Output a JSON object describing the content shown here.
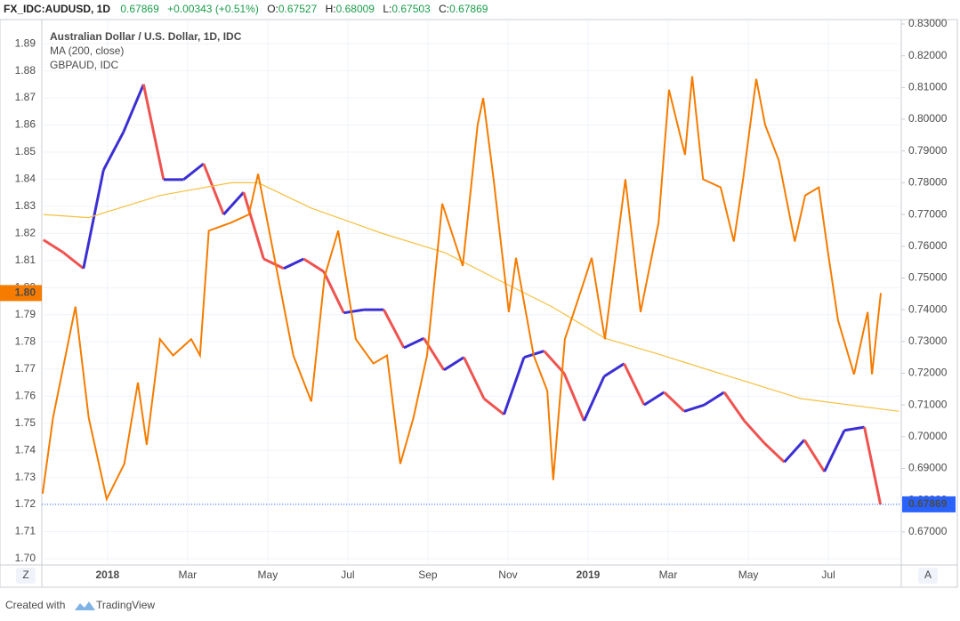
{
  "header": {
    "symbol": "FX_IDC:AUDUSD, 1D",
    "last": "0.67869",
    "change": "+0.00343 (+0.51%)",
    "o_label": "O:",
    "o": "0.67527",
    "h_label": "H:",
    "h": "0.68009",
    "l_label": "L:",
    "l": "0.67503",
    "c_label": "C:",
    "c": "0.67869"
  },
  "footer": {
    "created": "Created with",
    "brand": "TradingView",
    "left_button": "Z",
    "right_button": "A"
  },
  "chart_data": {
    "type": "line",
    "legend": [
      "Australian Dollar / U.S. Dollar, 1D, IDC",
      "MA (200, close)",
      "GBPAUD, IDC"
    ],
    "xlim": [
      -1.64,
      19.82
    ],
    "xticks": [
      {
        "value": 0,
        "label": "2018"
      },
      {
        "value": 2,
        "label": "Mar"
      },
      {
        "value": 4,
        "label": "May"
      },
      {
        "value": 6,
        "label": "Jul"
      },
      {
        "value": 8,
        "label": "Sep"
      },
      {
        "value": 10,
        "label": "Nov"
      },
      {
        "value": 12,
        "label": "2019"
      },
      {
        "value": 14,
        "label": "Mar"
      },
      {
        "value": 16,
        "label": "May"
      },
      {
        "value": 18,
        "label": "Jul"
      }
    ],
    "ylim": [
      1.6977,
      1.8989
    ],
    "yticks": [
      {
        "value": 1.7,
        "label": "1.70"
      },
      1.71,
      1.72,
      1.73,
      1.74,
      1.75,
      1.76,
      1.77,
      1.78,
      1.79,
      {
        "value": 1.8,
        "label": "1.80"
      },
      1.81,
      1.82,
      1.83,
      1.84,
      1.85,
      1.86,
      1.87,
      1.88,
      1.89
    ],
    "y2lim": [
      0.6596,
      0.8314
    ],
    "y2ticks": [
      {
        "value": 0.67,
        "label": "0.67000"
      },
      {
        "value": 0.68,
        "label": "0.68000"
      },
      {
        "value": 0.69,
        "label": "0.69000"
      },
      {
        "value": 0.7,
        "label": "0.70000"
      },
      {
        "value": 0.71,
        "label": "0.71000"
      },
      {
        "value": 0.72,
        "label": "0.72000"
      },
      {
        "value": 0.73,
        "label": "0.73000"
      },
      {
        "value": 0.74,
        "label": "0.74000"
      },
      {
        "value": 0.75,
        "label": "0.75000"
      },
      {
        "value": 0.76,
        "label": "0.76000"
      },
      {
        "value": 0.77,
        "label": "0.77000"
      },
      {
        "value": 0.78,
        "label": "0.78000"
      },
      {
        "value": 0.79,
        "label": "0.79000"
      },
      {
        "value": 0.8,
        "label": "0.80000"
      },
      {
        "value": 0.81,
        "label": "0.81000"
      },
      {
        "value": 0.82,
        "label": "0.82000"
      },
      {
        "value": 0.83,
        "label": "0.83000"
      }
    ],
    "grid": true,
    "series": [
      {
        "name": "AUDUSD",
        "axis": "y2",
        "style": "updown",
        "up_color": "#3b2fd4",
        "down_color": "#ef5350",
        "x": [
          -1.6,
          -1.1,
          -0.6,
          -0.1,
          0.4,
          0.9,
          1.4,
          1.9,
          2.4,
          2.9,
          3.4,
          3.9,
          4.4,
          4.9,
          5.4,
          5.9,
          6.4,
          6.9,
          7.4,
          7.9,
          8.4,
          8.9,
          9.4,
          9.9,
          10.4,
          10.9,
          11.4,
          11.9,
          12.4,
          12.9,
          13.4,
          13.9,
          14.4,
          14.9,
          15.4,
          15.9,
          16.4,
          16.9,
          17.4,
          17.9,
          18.4,
          18.9,
          19.3
        ],
        "values": [
          0.762,
          0.758,
          0.753,
          0.784,
          0.796,
          0.811,
          0.781,
          0.781,
          0.786,
          0.77,
          0.777,
          0.756,
          0.753,
          0.756,
          0.752,
          0.739,
          0.74,
          0.74,
          0.728,
          0.731,
          0.721,
          0.725,
          0.712,
          0.707,
          0.725,
          0.727,
          0.72,
          0.705,
          0.719,
          0.723,
          0.71,
          0.714,
          0.708,
          0.71,
          0.714,
          0.705,
          0.698,
          0.692,
          0.699,
          0.689,
          0.702,
          0.703,
          0.67869
        ],
        "last_label": {
          "value": 0.67869,
          "label": "0.67869"
        },
        "label_color": "#2962ff"
      },
      {
        "name": "MA (200, close)",
        "axis": "y2",
        "color": "#f5c040",
        "x": [
          -1.6,
          -0.47,
          1.31,
          3.09,
          3.76,
          5.09,
          6.87,
          8.42,
          9.98,
          11.09,
          12.42,
          13.76,
          15.53,
          17.31,
          19.76
        ],
        "values": [
          0.77,
          0.769,
          0.776,
          0.78,
          0.78,
          0.772,
          0.764,
          0.758,
          0.748,
          0.741,
          0.731,
          0.726,
          0.719,
          0.712,
          0.708
        ]
      },
      {
        "name": "GBPAUD",
        "axis": "y",
        "color": "#f57c00",
        "x": [
          -1.62,
          -1.36,
          -0.8,
          -0.47,
          -0.02,
          0.42,
          0.76,
          0.98,
          1.31,
          1.64,
          2.09,
          2.31,
          2.53,
          3.09,
          3.53,
          3.76,
          4.09,
          4.64,
          5.09,
          5.42,
          5.76,
          6.2,
          6.64,
          6.98,
          7.31,
          7.64,
          7.98,
          8.36,
          8.87,
          9.24,
          9.38,
          9.64,
          10.02,
          10.2,
          10.64,
          10.98,
          11.13,
          11.42,
          11.87,
          12.09,
          12.42,
          12.93,
          13.31,
          13.76,
          14.02,
          14.42,
          14.6,
          14.87,
          15.31,
          15.64,
          15.87,
          16.2,
          16.42,
          16.76,
          17.16,
          17.42,
          17.76,
          17.98,
          18.24,
          18.64,
          18.98,
          19.09,
          19.31
        ],
        "values": [
          1.724,
          1.752,
          1.793,
          1.752,
          1.722,
          1.735,
          1.765,
          1.742,
          1.781,
          1.775,
          1.781,
          1.775,
          1.821,
          1.824,
          1.827,
          1.842,
          1.817,
          1.775,
          1.758,
          1.804,
          1.821,
          1.781,
          1.772,
          1.775,
          1.735,
          1.752,
          1.775,
          1.831,
          1.808,
          1.86,
          1.87,
          1.84,
          1.791,
          1.811,
          1.775,
          1.762,
          1.729,
          1.781,
          1.801,
          1.811,
          1.781,
          1.84,
          1.791,
          1.824,
          1.873,
          1.849,
          1.878,
          1.84,
          1.837,
          1.817,
          1.84,
          1.877,
          1.86,
          1.847,
          1.817,
          1.834,
          1.837,
          1.814,
          1.788,
          1.768,
          1.791,
          1.768,
          1.798
        ],
        "last_label": {
          "value": 1.798,
          "label": "1.80"
        },
        "label_color": "#f57c00"
      }
    ]
  }
}
